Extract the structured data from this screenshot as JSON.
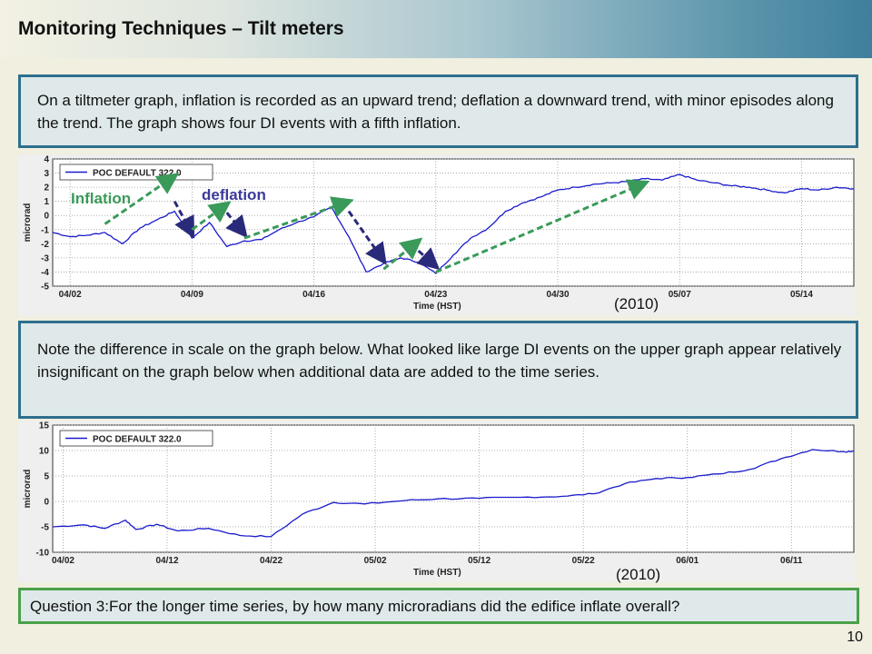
{
  "title": "Monitoring Techniques – Tilt meters",
  "text_box_1": "On a tiltmeter graph, inflation is recorded as an upward trend; deflation a downward trend, with minor episodes along the trend.  The graph shows four DI events with a fifth inflation.",
  "text_box_2": "Note the difference in scale on the graph below.  What looked like large DI events on the upper graph appear relatively insignificant on the graph below when additional data are added to the time series.",
  "question": "Question 3:For the longer time series, by how many microradians did the edifice inflate overall?",
  "page_number": "10",
  "annotations": {
    "inflation": "Inflation",
    "deflation": "deflation",
    "year_top": "(2010)",
    "year_bottom": "(2010)"
  },
  "colors": {
    "series": "#1a1acc",
    "inflation_arrow": "#3a9a5a",
    "deflation_arrow": "#2a2a7a",
    "box_border": "#2d6f8e",
    "question_border": "#4aa04a"
  },
  "chart_data": [
    {
      "type": "line",
      "xlabel": "Time (HST)",
      "ylabel": "microrad",
      "ylim": [
        -5,
        4
      ],
      "xlim": [
        "04/01",
        "05/17"
      ],
      "yticks": [
        "4",
        "3",
        "2",
        "1",
        "0",
        "-1",
        "-2",
        "-3",
        "-4",
        "-5"
      ],
      "xticks": [
        "04/02",
        "04/09",
        "04/16",
        "04/23",
        "04/30",
        "05/07",
        "05/14"
      ],
      "legend": "POC DEFAULT 322.0",
      "series": [
        {
          "name": "POC DEFAULT 322.0",
          "x": [
            "04/01",
            "04/02",
            "04/03",
            "04/04",
            "04/05",
            "04/06",
            "04/07",
            "04/08",
            "04/09",
            "04/10",
            "04/11",
            "04/12",
            "04/13",
            "04/14",
            "04/15",
            "04/16",
            "04/17",
            "04/18",
            "04/19",
            "04/20",
            "04/21",
            "04/22",
            "04/23",
            "04/24",
            "04/25",
            "04/26",
            "04/27",
            "04/28",
            "04/29",
            "04/30",
            "05/01",
            "05/02",
            "05/03",
            "05/04",
            "05/05",
            "05/06",
            "05/07",
            "05/08",
            "05/09",
            "05/10",
            "05/11",
            "05/12",
            "05/13",
            "05/14",
            "05/15",
            "05/16",
            "05/17"
          ],
          "y": [
            -1.2,
            -1.5,
            -1.4,
            -1.2,
            -2.0,
            -0.9,
            -0.3,
            0.3,
            -1.6,
            -0.5,
            -2.2,
            -1.8,
            -1.7,
            -1.0,
            -0.5,
            -0.1,
            0.6,
            -1.5,
            -4.0,
            -3.4,
            -3.0,
            -3.3,
            -4.1,
            -2.8,
            -1.6,
            -0.9,
            0.3,
            0.9,
            1.3,
            1.8,
            2.0,
            2.2,
            2.3,
            2.4,
            2.6,
            2.5,
            2.9,
            2.5,
            2.3,
            2.1,
            2.0,
            1.8,
            1.6,
            1.9,
            1.8,
            2.0,
            1.9
          ]
        }
      ],
      "arrows": [
        {
          "kind": "inflation",
          "from": [
            "04/04",
            -0.6
          ],
          "to": [
            "04/08",
            2.8
          ]
        },
        {
          "kind": "deflation",
          "from": [
            "04/08",
            1.0
          ],
          "to": [
            "04/09",
            -1.3
          ]
        },
        {
          "kind": "inflation",
          "from": [
            "04/09",
            -1.0
          ],
          "to": [
            "04/11",
            0.8
          ]
        },
        {
          "kind": "deflation",
          "from": [
            "04/11",
            0.2
          ],
          "to": [
            "04/12",
            -1.3
          ]
        },
        {
          "kind": "inflation",
          "from": [
            "04/12",
            -1.6
          ],
          "to": [
            "04/18",
            1.0
          ]
        },
        {
          "kind": "deflation",
          "from": [
            "04/18",
            0.3
          ],
          "to": [
            "04/20",
            -3.2
          ]
        },
        {
          "kind": "inflation",
          "from": [
            "04/20",
            -3.8
          ],
          "to": [
            "04/22",
            -1.8
          ]
        },
        {
          "kind": "deflation",
          "from": [
            "04/22",
            -2.5
          ],
          "to": [
            "04/23",
            -3.6
          ]
        },
        {
          "kind": "inflation",
          "from": [
            "04/23",
            -4.0
          ],
          "to": [
            "05/05",
            2.3
          ]
        }
      ]
    },
    {
      "type": "line",
      "xlabel": "Time (HST)",
      "ylabel": "microrad",
      "ylim": [
        -10,
        15
      ],
      "xlim": [
        "04/01",
        "06/17"
      ],
      "yticks": [
        "15",
        "10",
        "5",
        "0",
        "-5",
        "-10"
      ],
      "xticks": [
        "04/02",
        "04/12",
        "04/22",
        "05/02",
        "05/12",
        "05/22",
        "06/01",
        "06/11"
      ],
      "legend": "POC DEFAULT 322.0",
      "series": [
        {
          "name": "POC DEFAULT 322.0",
          "x": [
            "04/01",
            "04/04",
            "04/06",
            "04/08",
            "04/09",
            "04/11",
            "04/13",
            "04/16",
            "04/19",
            "04/22",
            "04/25",
            "04/28",
            "05/01",
            "05/05",
            "05/08",
            "05/12",
            "05/16",
            "05/20",
            "05/23",
            "05/26",
            "05/29",
            "06/01",
            "06/04",
            "06/07",
            "06/10",
            "06/13",
            "06/16",
            "06/17"
          ],
          "y": [
            -5.0,
            -4.6,
            -5.3,
            -3.7,
            -5.5,
            -4.5,
            -5.8,
            -5.3,
            -6.7,
            -6.9,
            -2.5,
            -0.2,
            -0.5,
            0.2,
            0.5,
            0.6,
            0.8,
            1.0,
            1.5,
            3.5,
            4.5,
            4.7,
            5.4,
            6.3,
            8.4,
            10.2,
            9.8,
            9.9
          ]
        }
      ]
    }
  ]
}
